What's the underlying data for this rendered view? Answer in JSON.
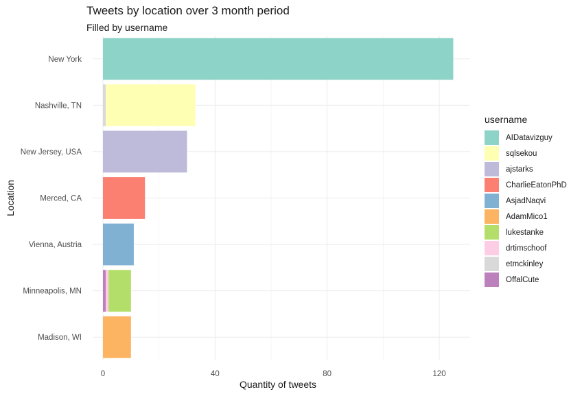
{
  "chart_data": {
    "type": "bar",
    "orientation": "horizontal",
    "stacked": true,
    "title": "Tweets by location over 3 month period",
    "subtitle": "Filled by username",
    "xlabel": "Quantity of tweets",
    "ylabel": "Location",
    "xlim": [
      0,
      130
    ],
    "x_ticks": [
      "0",
      "40",
      "80",
      "120"
    ],
    "grid": true,
    "legend_title": "username",
    "legend_position": "right",
    "categories": [
      "New York",
      "Nashville, TN",
      "New Jersey, USA",
      "Merced, CA",
      "Vienna, Austria",
      "Minneapolis, MN",
      "Madison, WI"
    ],
    "series": [
      {
        "name": "AIDatavizguy",
        "color": "#8DD3C7",
        "values": [
          125,
          0,
          0,
          0,
          0,
          0,
          0
        ]
      },
      {
        "name": "sqlsekou",
        "color": "#FFFFB3",
        "values": [
          0,
          32,
          0,
          0,
          0,
          0,
          0
        ]
      },
      {
        "name": "ajstarks",
        "color": "#BEBADA",
        "values": [
          0,
          0,
          30,
          0,
          0,
          0,
          0
        ]
      },
      {
        "name": "CharlieEatonPhD",
        "color": "#FB8072",
        "values": [
          0,
          0,
          0,
          15,
          0,
          0,
          0
        ]
      },
      {
        "name": "AsjadNaqvi",
        "color": "#80B1D3",
        "values": [
          0,
          0,
          0,
          0,
          11,
          0,
          0
        ]
      },
      {
        "name": "AdamMico1",
        "color": "#FDB462",
        "values": [
          0,
          0,
          0,
          0,
          0,
          0,
          10
        ]
      },
      {
        "name": "lukestanke",
        "color": "#B3DE69",
        "values": [
          0,
          0,
          0,
          0,
          0,
          8,
          0
        ]
      },
      {
        "name": "drtimschoof",
        "color": "#FCCDE5",
        "values": [
          0,
          0,
          0,
          0,
          0,
          1,
          0
        ]
      },
      {
        "name": "etmckinley",
        "color": "#D9D9D9",
        "values": [
          0,
          1,
          0,
          0,
          0,
          0,
          0
        ]
      },
      {
        "name": "OffalCute",
        "color": "#BC80BD",
        "values": [
          0,
          0,
          0,
          0,
          0,
          1,
          0
        ]
      }
    ]
  }
}
